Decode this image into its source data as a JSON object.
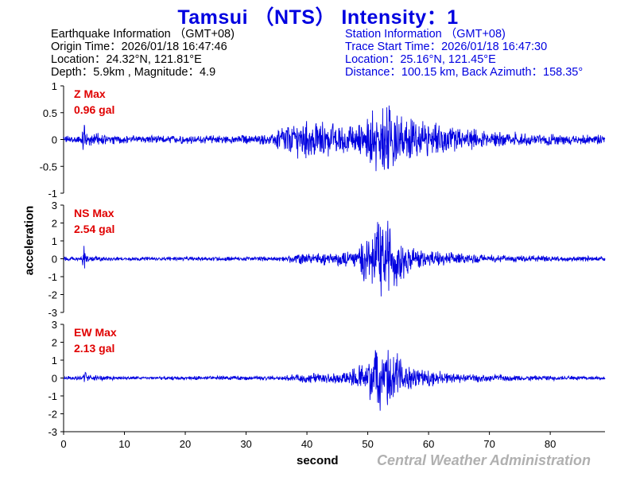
{
  "title": "Tamsui （NTS） Intensity：1",
  "earthquake": {
    "header": "Earthquake Information （GMT+08)",
    "origin_time": "Origin Time：2026/01/18 16:47:46",
    "location": "Location：24.32°N, 121.81°E",
    "depth_mag": "Depth：5.9km , Magnitude：4.9"
  },
  "station": {
    "header": "Station Information （GMT+08)",
    "trace_start": "Trace Start Time：2026/01/18 16:47:30",
    "location": "Location：25.16°N, 121.45°E",
    "distance": "Distance：100.15 km, Back Azimuth：158.35°"
  },
  "xlabel": "second",
  "ylabel": "acceleration",
  "credit": "Central Weather Administration",
  "colors": {
    "trace": "#0000e0",
    "title": "#0000e0",
    "label": "#e00000",
    "credit": "#b0b0b0"
  },
  "chart_data": [
    {
      "type": "line",
      "component": "Z",
      "label_line1": "Z Max",
      "label_line2": "0.96 gal",
      "xlim": [
        0,
        89
      ],
      "ylim": [
        -1,
        1
      ],
      "yticks": [
        "1",
        "0.5",
        "0",
        "-0.5",
        "-1"
      ],
      "ytick_values": [
        1,
        0.5,
        0,
        -0.5,
        -1
      ],
      "envelope": [
        [
          0,
          0.08
        ],
        [
          3,
          0.1
        ],
        [
          3.4,
          0.5
        ],
        [
          3.8,
          0.15
        ],
        [
          10,
          0.08
        ],
        [
          34,
          0.1
        ],
        [
          36,
          0.3
        ],
        [
          40,
          0.4
        ],
        [
          44,
          0.35
        ],
        [
          48,
          0.3
        ],
        [
          50,
          0.5
        ],
        [
          52,
          0.75
        ],
        [
          54,
          0.7
        ],
        [
          56,
          0.5
        ],
        [
          60,
          0.35
        ],
        [
          65,
          0.25
        ],
        [
          70,
          0.18
        ],
        [
          80,
          0.12
        ],
        [
          89,
          0.1
        ]
      ]
    },
    {
      "type": "line",
      "component": "NS",
      "label_line1": "NS Max",
      "label_line2": "2.54 gal",
      "xlim": [
        0,
        89
      ],
      "ylim": [
        -3,
        3
      ],
      "yticks": [
        "3",
        "2",
        "1",
        "0",
        "-1",
        "-2",
        "-3"
      ],
      "ytick_values": [
        3,
        2,
        1,
        0,
        -1,
        -2,
        -3
      ],
      "envelope": [
        [
          0,
          0.12
        ],
        [
          3,
          0.15
        ],
        [
          3.4,
          1.0
        ],
        [
          3.8,
          0.2
        ],
        [
          10,
          0.1
        ],
        [
          36,
          0.15
        ],
        [
          38,
          0.3
        ],
        [
          44,
          0.4
        ],
        [
          48,
          0.5
        ],
        [
          49,
          1.2
        ],
        [
          51,
          2.0
        ],
        [
          53,
          2.5
        ],
        [
          55,
          1.5
        ],
        [
          57,
          0.8
        ],
        [
          60,
          0.5
        ],
        [
          65,
          0.35
        ],
        [
          70,
          0.25
        ],
        [
          80,
          0.2
        ],
        [
          89,
          0.15
        ]
      ]
    },
    {
      "type": "line",
      "component": "EW",
      "label_line1": "EW Max",
      "label_line2": "2.13 gal",
      "xlim": [
        0,
        89
      ],
      "ylim": [
        -3,
        3
      ],
      "yticks": [
        "3",
        "2",
        "1",
        "0",
        "-1",
        "-2",
        "-3"
      ],
      "ytick_values": [
        3,
        2,
        1,
        0,
        -1,
        -2,
        -3
      ],
      "envelope": [
        [
          0,
          0.12
        ],
        [
          3,
          0.15
        ],
        [
          3.4,
          0.6
        ],
        [
          3.8,
          0.2
        ],
        [
          10,
          0.1
        ],
        [
          36,
          0.15
        ],
        [
          40,
          0.3
        ],
        [
          46,
          0.35
        ],
        [
          49,
          0.9
        ],
        [
          51,
          1.6
        ],
        [
          53,
          2.1
        ],
        [
          55,
          1.4
        ],
        [
          57,
          0.8
        ],
        [
          60,
          0.5
        ],
        [
          65,
          0.3
        ],
        [
          72,
          0.2
        ],
        [
          80,
          0.15
        ],
        [
          89,
          0.12
        ]
      ]
    }
  ],
  "xticks": [
    "0",
    "10",
    "20",
    "30",
    "40",
    "50",
    "60",
    "70",
    "80"
  ],
  "xtick_values": [
    0,
    10,
    20,
    30,
    40,
    50,
    60,
    70,
    80
  ]
}
